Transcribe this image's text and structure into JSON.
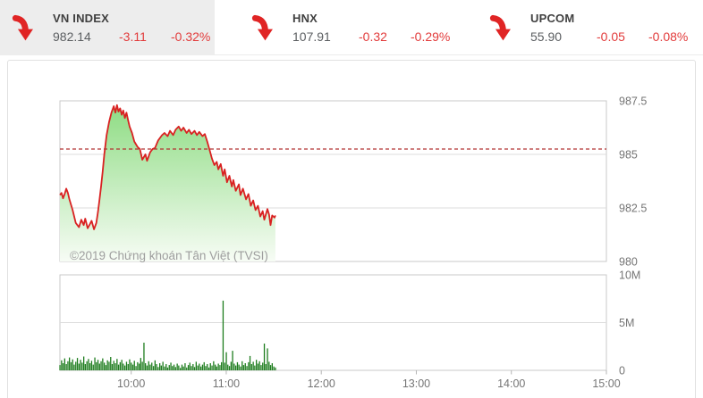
{
  "tickers": [
    {
      "name": "VN INDEX",
      "value": "982.14",
      "change": "-3.11",
      "pct": "-0.32%",
      "direction": "down",
      "active": true
    },
    {
      "name": "HNX",
      "value": "107.91",
      "change": "-0.32",
      "pct": "-0.29%",
      "direction": "down",
      "active": false
    },
    {
      "name": "UPCOM",
      "value": "55.90",
      "change": "-0.05",
      "pct": "-0.08%",
      "direction": "down",
      "active": false
    }
  ],
  "watermark": "©2019 Chứng khoán Tân Việt (TVSI)",
  "colors": {
    "accent_red": "#e02424",
    "line_red": "#d92121",
    "ref_dash_red": "#b23030",
    "fill_top": "#8edc83",
    "fill_bottom": "#f7fcf5",
    "bar_green": "#1e7d1e",
    "grid": "#dcdcdc",
    "plot_border": "#c9c9c9",
    "axis_text": "#757575",
    "watermark_text": "#9e9e9e",
    "tick_mark": "#b5b5b5"
  },
  "chart_data": [
    {
      "type": "area",
      "name": "vnindex-intraday-price",
      "x_unit": "minutes-since-09:00",
      "x_range": [
        15,
        360
      ],
      "ylim": [
        980,
        987.5
      ],
      "y_ticks": [
        {
          "v": 987.5,
          "label": "987.5"
        },
        {
          "v": 985,
          "label": "985"
        },
        {
          "v": 982.5,
          "label": "982.5"
        },
        {
          "v": 980,
          "label": "980"
        }
      ],
      "x_ticks": [
        {
          "m": 60,
          "label": "10:00"
        },
        {
          "m": 120,
          "label": "11:00"
        },
        {
          "m": 180,
          "label": "12:00"
        },
        {
          "m": 240,
          "label": "13:00"
        },
        {
          "m": 300,
          "label": "14:00"
        },
        {
          "m": 360,
          "label": "15:00"
        }
      ],
      "ref_value": 985.25,
      "points": [
        [
          15,
          983.1
        ],
        [
          16,
          983.2
        ],
        [
          17,
          982.95
        ],
        [
          18,
          983.15
        ],
        [
          19,
          983.4
        ],
        [
          20,
          983.2
        ],
        [
          21,
          982.9
        ],
        [
          23,
          982.4
        ],
        [
          25,
          981.8
        ],
        [
          27,
          981.6
        ],
        [
          28.5,
          981.95
        ],
        [
          30,
          981.7
        ],
        [
          31,
          982.0
        ],
        [
          32.5,
          981.55
        ],
        [
          34,
          981.75
        ],
        [
          35,
          981.9
        ],
        [
          36.5,
          981.5
        ],
        [
          38,
          981.8
        ],
        [
          39,
          982.3
        ],
        [
          40,
          982.9
        ],
        [
          41,
          983.5
        ],
        [
          42,
          984.2
        ],
        [
          43,
          985.0
        ],
        [
          44.5,
          985.9
        ],
        [
          46,
          986.5
        ],
        [
          47.5,
          986.95
        ],
        [
          49,
          987.25
        ],
        [
          50,
          986.95
        ],
        [
          51,
          987.3
        ],
        [
          52,
          987.0
        ],
        [
          53,
          987.15
        ],
        [
          54,
          986.85
        ],
        [
          55,
          987.05
        ],
        [
          56,
          986.7
        ],
        [
          57,
          986.95
        ],
        [
          58,
          986.6
        ],
        [
          59,
          986.3
        ],
        [
          60.5,
          986.0
        ],
        [
          62,
          985.6
        ],
        [
          64,
          985.35
        ],
        [
          65.5,
          985.25
        ],
        [
          67,
          984.75
        ],
        [
          69,
          985.0
        ],
        [
          70,
          984.7
        ],
        [
          72,
          985.1
        ],
        [
          73.5,
          985.25
        ],
        [
          75,
          985.3
        ],
        [
          77,
          985.65
        ],
        [
          79.5,
          985.9
        ],
        [
          81,
          986.0
        ],
        [
          83,
          985.85
        ],
        [
          84.5,
          986.1
        ],
        [
          86.5,
          985.9
        ],
        [
          88,
          986.15
        ],
        [
          90,
          986.3
        ],
        [
          91.5,
          986.1
        ],
        [
          93,
          986.25
        ],
        [
          95,
          986.0
        ],
        [
          96.5,
          986.15
        ],
        [
          98,
          985.95
        ],
        [
          100,
          986.1
        ],
        [
          101.5,
          985.9
        ],
        [
          103,
          986.05
        ],
        [
          105,
          985.85
        ],
        [
          106.5,
          985.95
        ],
        [
          108,
          985.6
        ],
        [
          109.5,
          985.2
        ],
        [
          111,
          984.8
        ],
        [
          112.5,
          984.5
        ],
        [
          114,
          984.65
        ],
        [
          115,
          984.3
        ],
        [
          116.5,
          984.55
        ],
        [
          118,
          984.0
        ],
        [
          119,
          984.3
        ],
        [
          120.5,
          983.7
        ],
        [
          122,
          984.0
        ],
        [
          123.5,
          983.5
        ],
        [
          124.5,
          983.8
        ],
        [
          126,
          983.3
        ],
        [
          128,
          983.6
        ],
        [
          129,
          983.1
        ],
        [
          130.5,
          983.4
        ],
        [
          132.5,
          982.9
        ],
        [
          134,
          983.15
        ],
        [
          135.5,
          982.6
        ],
        [
          137,
          982.85
        ],
        [
          138.5,
          982.4
        ],
        [
          140,
          982.6
        ],
        [
          141.5,
          982.1
        ],
        [
          143,
          982.35
        ],
        [
          144,
          981.95
        ],
        [
          146,
          982.45
        ],
        [
          147,
          982.2
        ],
        [
          148,
          981.7
        ],
        [
          149,
          982.15
        ],
        [
          150.5,
          982.05
        ],
        [
          151,
          982.15
        ]
      ]
    },
    {
      "type": "bar",
      "name": "volume",
      "x_unit": "minutes-since-09:00",
      "start_min": 15,
      "ylim": [
        0,
        10000000
      ],
      "y_ticks": [
        {
          "v": 10000000,
          "label": "10M"
        },
        {
          "v": 5000000,
          "label": "5M"
        },
        {
          "v": 0,
          "label": "0"
        }
      ],
      "values_millions": [
        0.55,
        1.05,
        0.75,
        1.25,
        0.65,
        0.95,
        1.35,
        0.85,
        1.15,
        0.6,
        0.9,
        1.3,
        0.7,
        1.1,
        0.8,
        1.45,
        0.65,
        0.95,
        1.2,
        0.75,
        1.0,
        0.6,
        1.35,
        0.85,
        1.1,
        0.7,
        0.95,
        1.25,
        0.8,
        0.55,
        1.05,
        0.9,
        1.4,
        0.65,
        1.0,
        0.75,
        1.2,
        0.6,
        0.85,
        1.1,
        0.7,
        0.5,
        0.9,
        0.65,
        1.15,
        0.8,
        0.6,
        1.0,
        0.45,
        0.85,
        0.7,
        1.3,
        0.9,
        2.9,
        0.75,
        0.5,
        0.95,
        0.6,
        0.8,
        0.45,
        1.05,
        0.65,
        0.35,
        0.75,
        0.5,
        0.9,
        0.4,
        0.65,
        0.3,
        0.55,
        0.8,
        0.45,
        0.6,
        0.35,
        0.7,
        0.5,
        0.25,
        0.6,
        0.4,
        0.75,
        0.3,
        0.55,
        0.8,
        0.45,
        0.65,
        0.35,
        0.9,
        0.5,
        0.7,
        0.4,
        0.6,
        0.85,
        0.45,
        0.65,
        0.3,
        0.75,
        0.5,
        0.95,
        0.6,
        0.4,
        0.7,
        0.55,
        0.85,
        7.3,
        0.8,
        1.9,
        0.6,
        0.45,
        0.9,
        2.05,
        0.7,
        0.5,
        0.85,
        0.6,
        0.4,
        0.95,
        0.55,
        0.75,
        0.45,
        0.85,
        1.5,
        0.65,
        0.9,
        0.5,
        1.1,
        0.7,
        0.95,
        0.55,
        0.8,
        2.8,
        0.65,
        2.3,
        0.9,
        0.55,
        0.75,
        0.4,
        0.3
      ]
    }
  ]
}
